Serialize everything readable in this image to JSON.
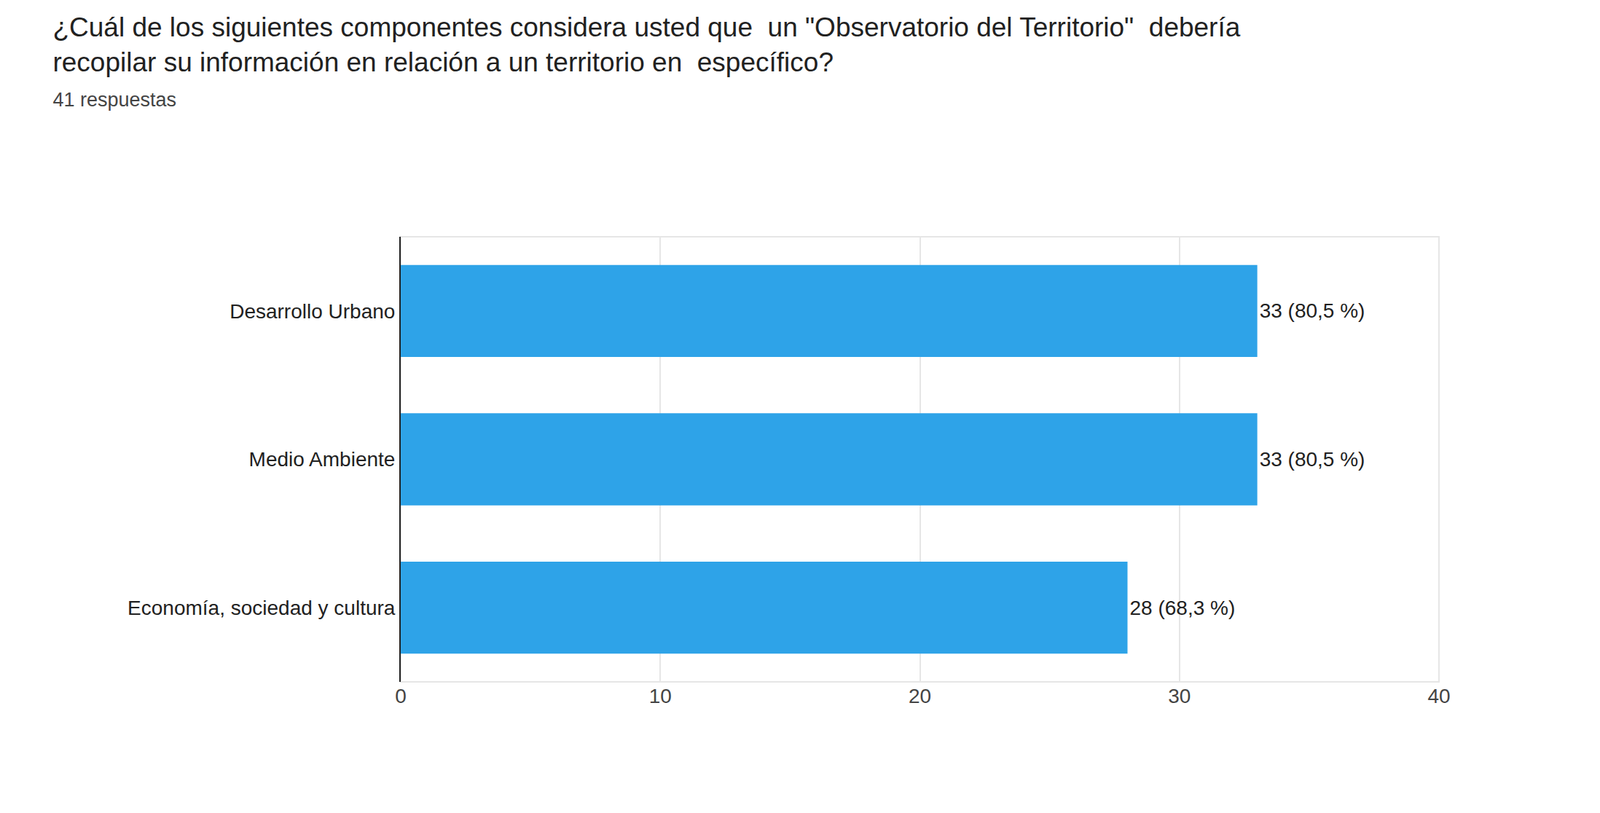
{
  "chart_data": {
    "type": "bar",
    "orientation": "horizontal",
    "title": "¿Cuál de los siguientes componentes considera usted que  un \"Observatorio del Territorio\"  debería recopilar su información en relación a un territorio en  específico?",
    "subtitle": "41 respuestas",
    "categories": [
      "Desarrollo Urbano",
      "Medio Ambiente",
      "Economía, sociedad y cultura"
    ],
    "values": [
      33,
      33,
      28
    ],
    "value_labels": [
      "33 (80,5 %)",
      "33 (80,5 %)",
      "28 (68,3 %)"
    ],
    "data_labels": true,
    "color": "#2ea3e8",
    "xlim": [
      0,
      40
    ],
    "xticks": [
      0,
      10,
      20,
      30,
      40
    ],
    "grid": true
  }
}
